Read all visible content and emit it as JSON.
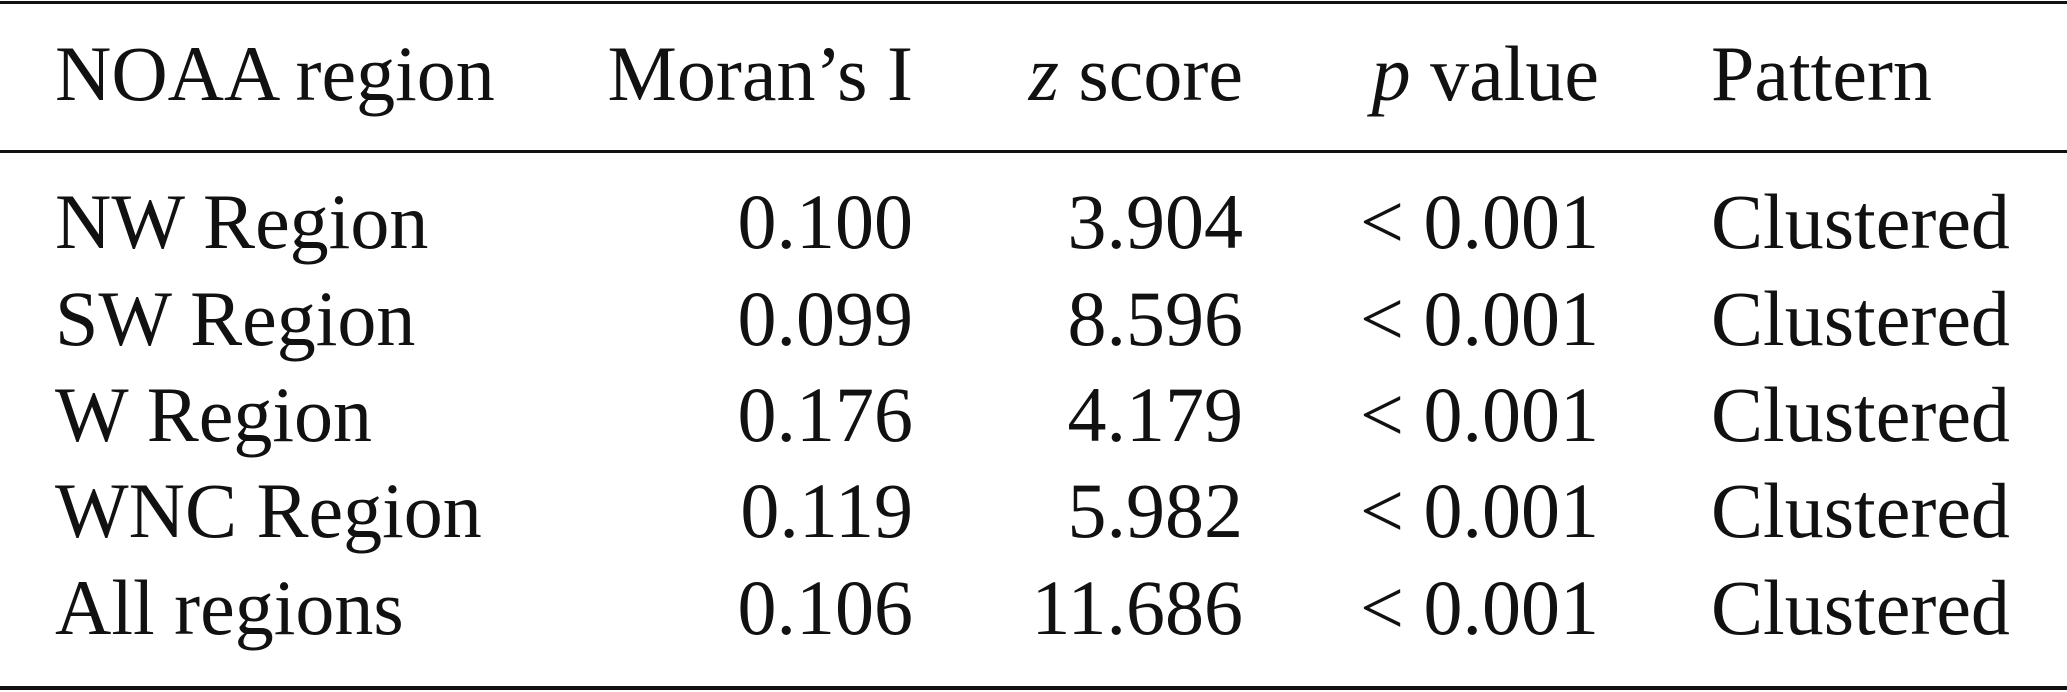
{
  "table": {
    "header": [
      "NOAA region",
      "Moran’s I",
      "z score",
      "p value",
      "Pattern"
    ],
    "rows": [
      [
        "NW Region",
        "0.100",
        "3.904",
        "< 0.001",
        "Clustered"
      ],
      [
        "SW Region",
        "0.099",
        "8.596",
        "< 0.001",
        "Clustered"
      ],
      [
        "W Region",
        "0.176",
        "4.179",
        "< 0.001",
        "Clustered"
      ],
      [
        "WNC Region",
        "0.119",
        "5.982",
        "< 0.001",
        "Clustered"
      ],
      [
        "All regions",
        "0.106",
        "11.686",
        "< 0.001",
        "Clustered"
      ]
    ]
  }
}
